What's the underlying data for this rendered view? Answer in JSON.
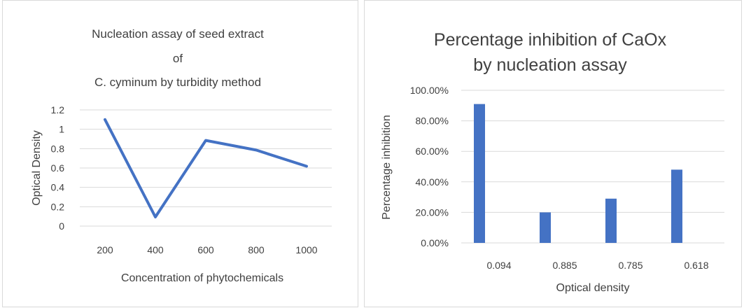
{
  "chart_data": [
    {
      "type": "line",
      "title_lines": [
        "Nucleation assay of seed extract",
        "of",
        "C. cyminum by turbidity method"
      ],
      "xlabel": "Concentration of phytochemicals",
      "ylabel": "Optical Density",
      "x": [
        200,
        400,
        600,
        800,
        1000
      ],
      "x_ticks": [
        "200",
        "400",
        "600",
        "800",
        "1000"
      ],
      "values": [
        1.1,
        0.094,
        0.885,
        0.785,
        0.618
      ],
      "y_ticks": [
        "0",
        "0.2",
        "0.4",
        "0.6",
        "0.8",
        "1",
        "1.2"
      ],
      "ylim": [
        0,
        1.2
      ],
      "grid": true,
      "legend": "none",
      "color": "#4472C4"
    },
    {
      "type": "bar",
      "title_lines": [
        "Percentage inhibition of CaOx",
        "by nucleation assay"
      ],
      "xlabel": "Optical density",
      "ylabel": "Percentage inhibition",
      "categories": [
        "0.094",
        "0.885",
        "0.785",
        "0.618"
      ],
      "values": [
        91,
        20,
        29,
        48
      ],
      "y_ticks": [
        "0.00%",
        "20.00%",
        "40.00%",
        "60.00%",
        "80.00%",
        "100.00%"
      ],
      "ylim": [
        0,
        100
      ],
      "grid": true,
      "legend": "none",
      "color": "#4472C4"
    }
  ]
}
